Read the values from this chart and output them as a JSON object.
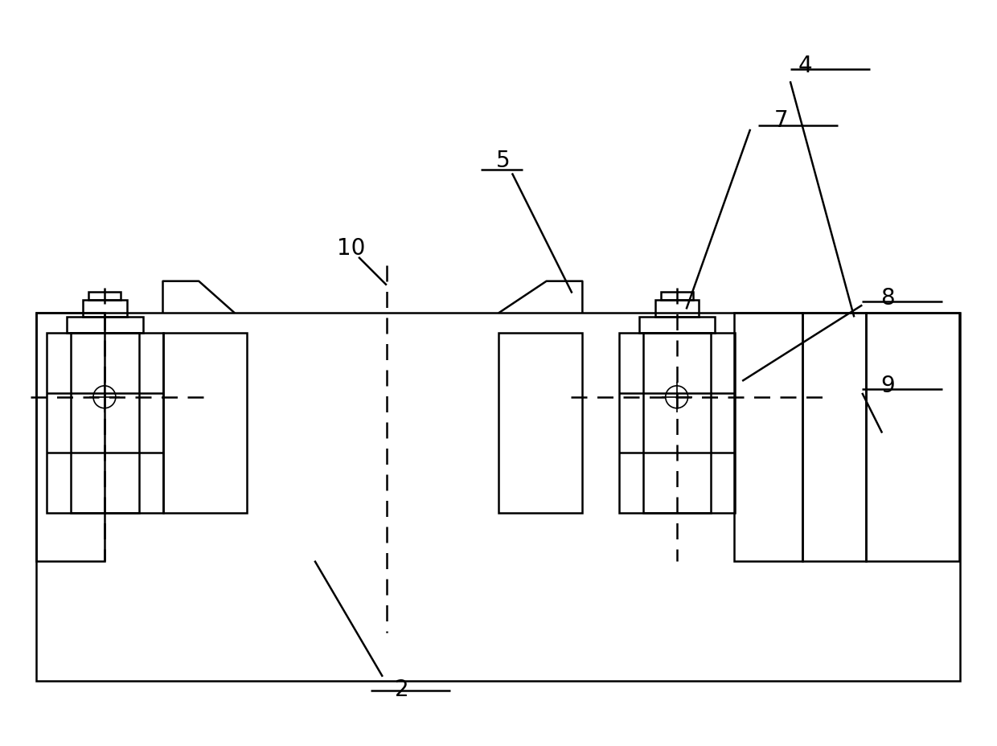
{
  "bg_color": "#ffffff",
  "line_color": "#000000",
  "lw": 1.8,
  "lw_thin": 1.2,
  "fig_width": 12.4,
  "fig_height": 9.29,
  "label_fontsize": 20
}
